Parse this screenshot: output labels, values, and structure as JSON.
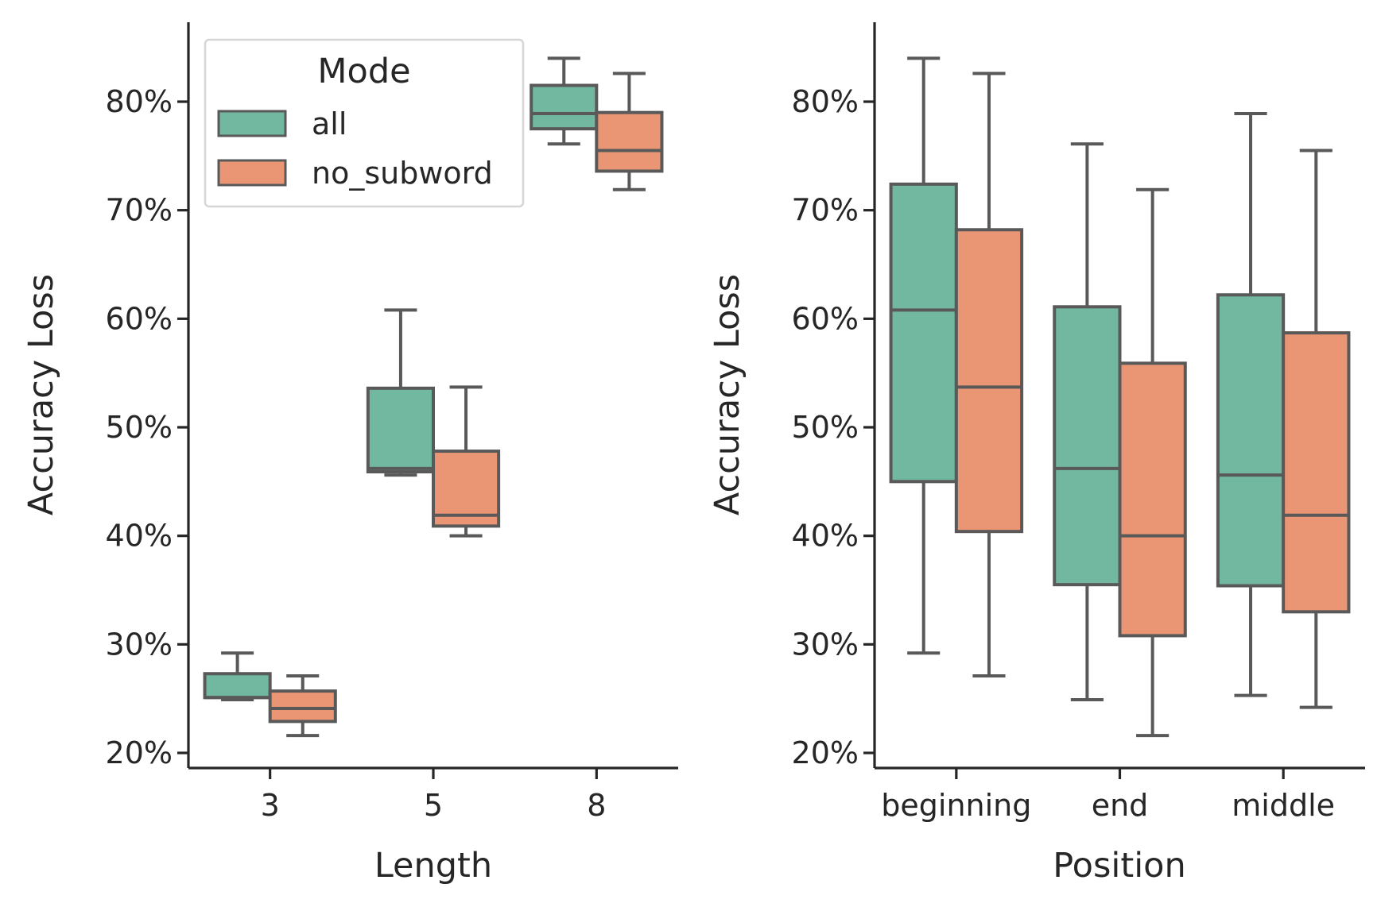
{
  "palette": {
    "all": "#72b7a0",
    "no_subword": "#ea9674",
    "line": "#595959"
  },
  "chart_data": [
    {
      "type": "box",
      "title": "",
      "xlabel": "Length",
      "ylabel": "Accuracy Loss",
      "categories": [
        "3",
        "5",
        "8"
      ],
      "ylim": [
        0.18,
        0.87
      ],
      "yticks": [
        0.2,
        0.3,
        0.4,
        0.5,
        0.6,
        0.7,
        0.8
      ],
      "ytick_labels": [
        "20%",
        "30%",
        "40%",
        "50%",
        "60%",
        "70%",
        "80%"
      ],
      "legend": {
        "title": "Mode",
        "entries": [
          "all",
          "no_subword"
        ],
        "placement": "top-left"
      },
      "series": [
        {
          "name": "all",
          "boxes": [
            {
              "min": 0.249,
              "q1": 0.251,
              "median": 0.251,
              "q3": 0.273,
              "max": 0.292
            },
            {
              "min": 0.456,
              "q1": 0.459,
              "median": 0.462,
              "q3": 0.536,
              "max": 0.608
            },
            {
              "min": 0.761,
              "q1": 0.775,
              "median": 0.789,
              "q3": 0.815,
              "max": 0.84
            }
          ]
        },
        {
          "name": "no_subword",
          "boxes": [
            {
              "min": 0.216,
              "q1": 0.229,
              "median": 0.241,
              "q3": 0.257,
              "max": 0.271
            },
            {
              "min": 0.4,
              "q1": 0.409,
              "median": 0.419,
              "q3": 0.478,
              "max": 0.537
            },
            {
              "min": 0.719,
              "q1": 0.736,
              "median": 0.755,
              "q3": 0.79,
              "max": 0.826
            }
          ]
        }
      ]
    },
    {
      "type": "box",
      "title": "",
      "xlabel": "Position",
      "ylabel": "Accuracy Loss",
      "categories": [
        "beginning",
        "end",
        "middle"
      ],
      "ylim": [
        0.18,
        0.87
      ],
      "yticks": [
        0.2,
        0.3,
        0.4,
        0.5,
        0.6,
        0.7,
        0.8
      ],
      "ytick_labels": [
        "20%",
        "30%",
        "40%",
        "50%",
        "60%",
        "70%",
        "80%"
      ],
      "series": [
        {
          "name": "all",
          "boxes": [
            {
              "min": 0.292,
              "q1": 0.45,
              "median": 0.608,
              "q3": 0.724,
              "max": 0.84
            },
            {
              "min": 0.249,
              "q1": 0.355,
              "median": 0.462,
              "q3": 0.611,
              "max": 0.761
            },
            {
              "min": 0.253,
              "q1": 0.354,
              "median": 0.456,
              "q3": 0.622,
              "max": 0.789
            }
          ]
        },
        {
          "name": "no_subword",
          "boxes": [
            {
              "min": 0.271,
              "q1": 0.404,
              "median": 0.537,
              "q3": 0.682,
              "max": 0.826
            },
            {
              "min": 0.216,
              "q1": 0.308,
              "median": 0.4,
              "q3": 0.559,
              "max": 0.719
            },
            {
              "min": 0.242,
              "q1": 0.33,
              "median": 0.419,
              "q3": 0.587,
              "max": 0.755
            }
          ]
        }
      ]
    }
  ]
}
